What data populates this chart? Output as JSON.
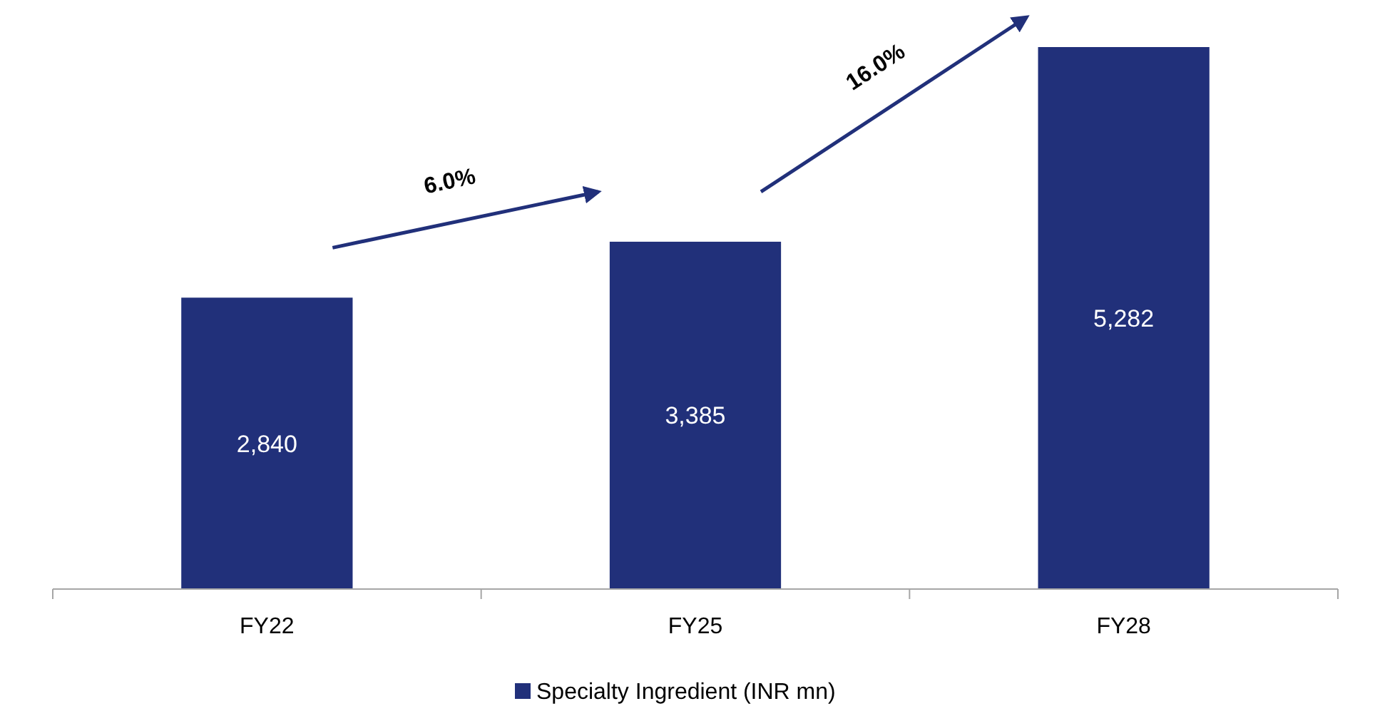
{
  "chart_data": {
    "type": "bar",
    "categories": [
      "FY22",
      "FY25",
      "FY28"
    ],
    "series": [
      {
        "name": "Specialty Ingredient (INR mn)",
        "color": "#21307a",
        "values": [
          2840,
          3385,
          5282
        ],
        "value_labels": [
          "2,840",
          "3,385",
          "5,282"
        ]
      }
    ],
    "legend": "bottom",
    "annotations": [
      "6.0%",
      "16.0%"
    ]
  }
}
